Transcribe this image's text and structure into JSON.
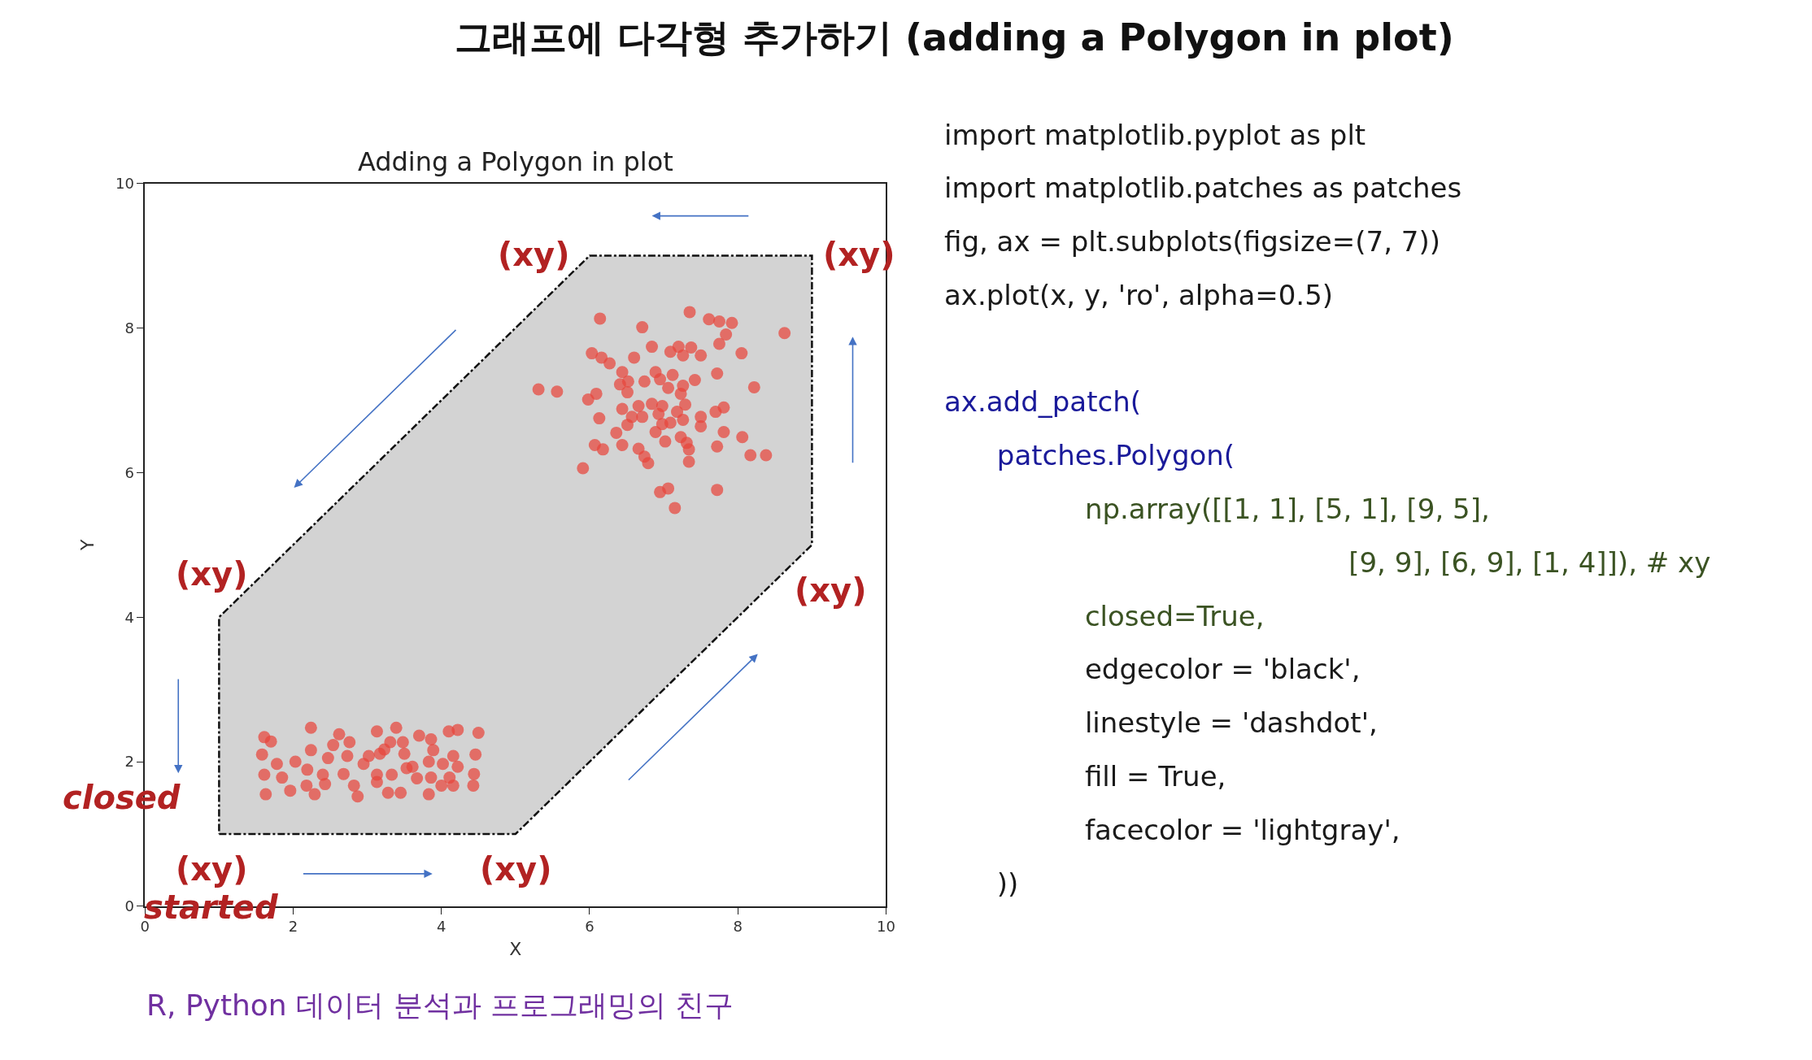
{
  "chart_data": {
    "type": "scatter",
    "title": "Adding a Polygon in plot",
    "xlabel": "X",
    "ylabel": "Y",
    "xlim": [
      0,
      10
    ],
    "ylim": [
      0,
      10
    ],
    "xticks": [
      0,
      2,
      4,
      6,
      8,
      10
    ],
    "yticks": [
      0,
      2,
      4,
      6,
      8,
      10
    ],
    "grid": false,
    "marker": "circle",
    "series": [
      {
        "type": "area",
        "color": "#d3d3d3",
        "line_style": "dashdot",
        "marker": "none",
        "x": [
          1,
          5,
          9,
          9,
          6,
          1,
          1
        ],
        "values": [
          1,
          1,
          5,
          9,
          9,
          4,
          1
        ]
      },
      {
        "type": "scatter",
        "color": "#e8453c",
        "x": [
          1.61,
          1.7,
          1.58,
          1.61,
          1.63,
          1.78,
          1.85,
          1.96,
          2.03,
          2.24,
          2.24,
          2.19,
          2.18,
          2.29,
          2.4,
          2.43,
          2.47,
          2.62,
          2.54,
          2.76,
          2.68,
          2.73,
          2.82,
          2.87,
          2.95,
          3.02,
          3.13,
          3.17,
          3.13,
          3.13,
          3.28,
          3.39,
          3.31,
          3.48,
          3.5,
          3.33,
          3.45,
          3.53,
          3.7,
          3.86,
          3.89,
          3.83,
          3.67,
          3.86,
          3.83,
          4.0,
          4.02,
          4.16,
          4.22,
          4.11,
          4.16,
          4.1,
          4.22,
          4.5,
          4.46,
          4.44,
          4.43,
          3.61,
          3.23,
          6.14,
          7.35,
          7.61,
          7.75,
          7.92,
          8.63,
          6.71,
          7.84,
          7.75,
          6.84,
          6.03,
          6.16,
          6.27,
          6.6,
          7.09,
          7.2,
          7.37,
          7.5,
          7.26,
          8.05,
          7.72,
          8.22,
          5.31,
          5.56,
          6.44,
          6.52,
          6.41,
          6.51,
          6.74,
          6.89,
          6.95,
          7.12,
          7.06,
          7.26,
          7.42,
          7.23,
          6.09,
          5.98,
          6.44,
          6.66,
          6.84,
          6.98,
          6.93,
          7.18,
          7.29,
          6.71,
          6.57,
          6.13,
          7.09,
          7.26,
          7.5,
          7.5,
          7.7,
          7.81,
          6.51,
          6.36,
          6.89,
          6.98,
          7.02,
          7.23,
          7.31,
          7.34,
          7.81,
          8.06,
          6.07,
          6.18,
          6.44,
          6.66,
          6.74,
          6.79,
          7.34,
          7.72,
          8.17,
          8.38,
          5.91,
          6.95,
          7.06,
          7.72,
          7.15
        ],
        "values": [
          2.34,
          2.28,
          2.1,
          1.82,
          1.55,
          1.97,
          1.78,
          1.6,
          2.0,
          2.47,
          2.16,
          1.89,
          1.67,
          1.55,
          1.82,
          1.69,
          2.05,
          2.38,
          2.23,
          2.27,
          1.83,
          2.08,
          1.67,
          1.52,
          1.97,
          2.08,
          2.42,
          2.11,
          1.82,
          1.72,
          1.57,
          2.47,
          2.27,
          2.27,
          2.11,
          1.82,
          1.57,
          1.91,
          2.36,
          2.31,
          2.16,
          2.0,
          1.77,
          1.78,
          1.55,
          1.67,
          1.97,
          2.08,
          1.93,
          1.78,
          1.67,
          2.42,
          2.44,
          2.4,
          2.1,
          1.83,
          1.67,
          1.93,
          2.17,
          8.13,
          8.22,
          8.12,
          8.09,
          8.07,
          7.93,
          8.01,
          7.91,
          7.78,
          7.74,
          7.65,
          7.59,
          7.51,
          7.59,
          7.67,
          7.74,
          7.73,
          7.62,
          7.62,
          7.65,
          7.37,
          7.18,
          7.15,
          7.12,
          7.39,
          7.26,
          7.22,
          7.11,
          7.26,
          7.39,
          7.29,
          7.35,
          7.17,
          7.2,
          7.28,
          7.09,
          7.09,
          7.01,
          6.88,
          6.92,
          6.95,
          6.92,
          6.81,
          6.84,
          6.94,
          6.77,
          6.77,
          6.75,
          6.69,
          6.73,
          6.77,
          6.64,
          6.84,
          6.9,
          6.66,
          6.55,
          6.56,
          6.67,
          6.43,
          6.49,
          6.41,
          6.32,
          6.56,
          6.49,
          6.38,
          6.32,
          6.38,
          6.33,
          6.22,
          6.13,
          6.15,
          6.36,
          6.24,
          6.24,
          6.06,
          5.73,
          5.78,
          5.76,
          5.51
        ]
      }
    ],
    "annotations": [
      "그래프에 다각형 추가하기 (adding a Polygon in plot)",
      "import matplotlib.pyplot as plt",
      "import matplotlib.patches as patches",
      "fig, ax = plt.subplots(figsize=(7, 7))",
      "ax.plot(x, y, 'ro', alpha=0.5)",
      "ax.add_patch(",
      "   patches.Polygon(",
      "        np.array([[1, 1], [5, 1], [9, 5],",
      "                       [9, 9], [6, 9], [1, 4]]), # xy",
      "        closed=True,",
      "        edgecolor = 'black',",
      "        linestyle = 'dashdot',",
      "        fill = True,",
      "        facecolor = 'lightgray',",
      "   ))",
      "closed",
      "R, Python 데이터 분석과 프로그래밍의 친구",
      {
        "text": "(xy)",
        "x": 1,
        "y": 1
      },
      {
        "text": "(xy)",
        "x": 5,
        "y": 1
      },
      {
        "text": "(xy)",
        "x": 9,
        "y": 5
      },
      {
        "text": "(xy)",
        "x": 9,
        "y": 9
      },
      {
        "text": "(xy)",
        "x": 6,
        "y": 9
      },
      {
        "text": "(xy)",
        "x": 1,
        "y": 4
      },
      {
        "text": "started",
        "x": 1,
        "y": 1
      }
    ]
  }
}
